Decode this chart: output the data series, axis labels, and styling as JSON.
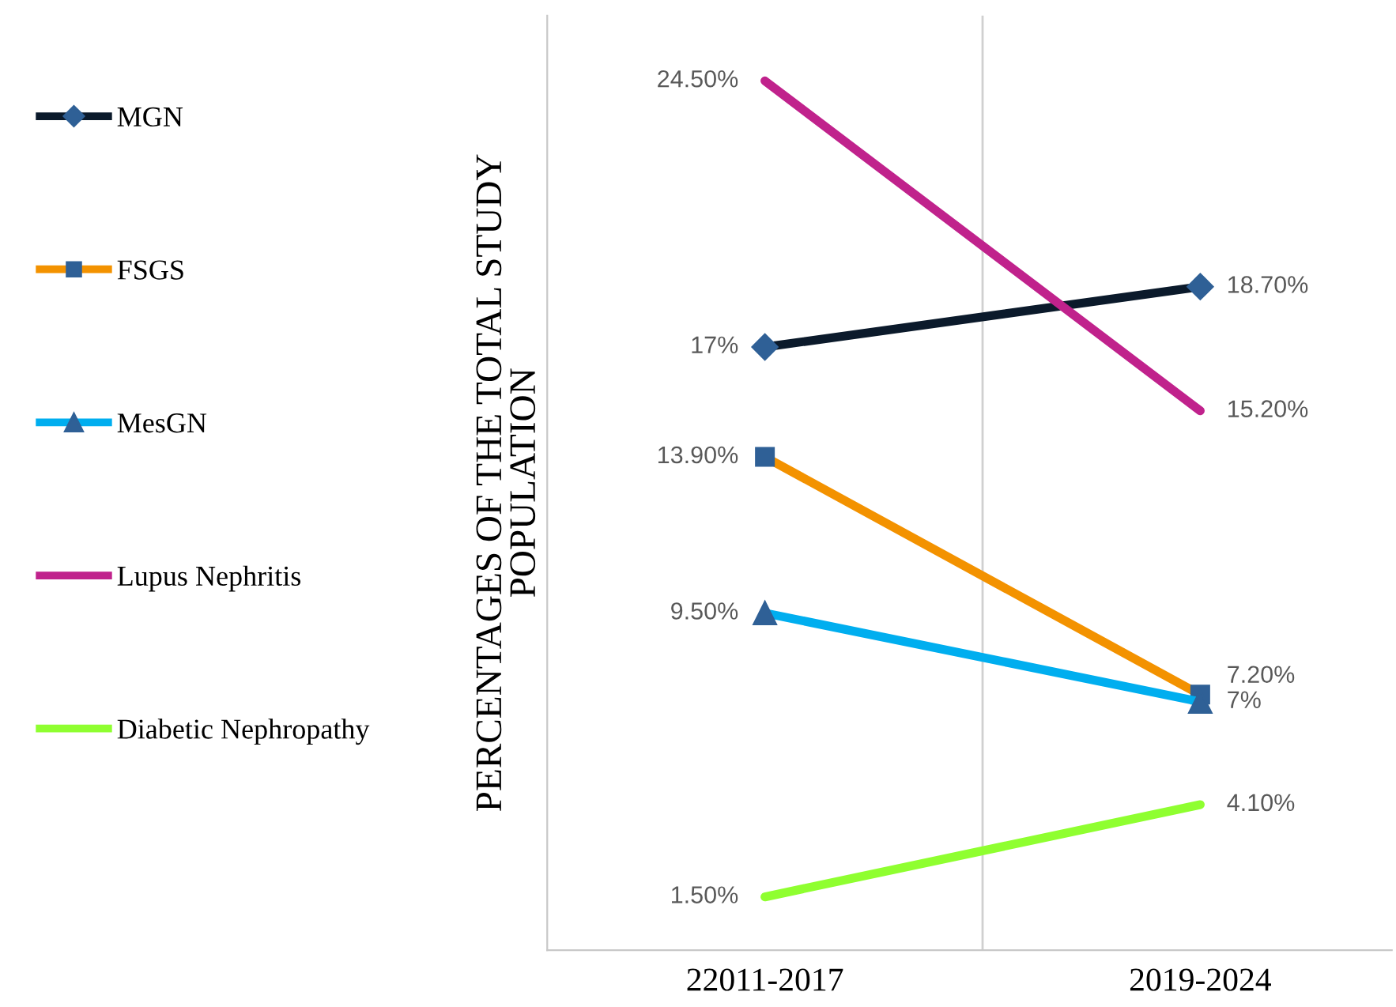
{
  "chart_data": {
    "type": "line",
    "ylabel": "PERCENTAGES OF THE TOTAL STUDY\nPOPULATION",
    "tick_labels": "x",
    "categories": [
      "22011-2017",
      "2019-2024"
    ],
    "series": [
      {
        "name": "MGN",
        "color": "#0b1a2b",
        "marker": "diamond",
        "values": [
          17,
          18.7
        ],
        "value_labels": [
          "17%",
          "18.70%"
        ]
      },
      {
        "name": "FSGS",
        "color": "#f39200",
        "marker": "square",
        "values": [
          13.9,
          7.2
        ],
        "value_labels": [
          "13.90%",
          "7.20%"
        ]
      },
      {
        "name": "MesGN",
        "color": "#00aeef",
        "marker": "triangle",
        "values": [
          9.5,
          7
        ],
        "value_labels": [
          "9.50%",
          "7%"
        ]
      },
      {
        "name": "Lupus Nephritis",
        "color": "#c0228c",
        "marker": "none",
        "values": [
          24.5,
          15.2
        ],
        "value_labels": [
          "24.50%",
          "15.20%"
        ]
      },
      {
        "name": "Diabetic Nephropathy",
        "color": "#8fff30",
        "marker": "none",
        "values": [
          1.5,
          4.1
        ],
        "value_labels": [
          "1.50%",
          "4.10%"
        ]
      }
    ],
    "grid": "x",
    "legend": "left"
  }
}
